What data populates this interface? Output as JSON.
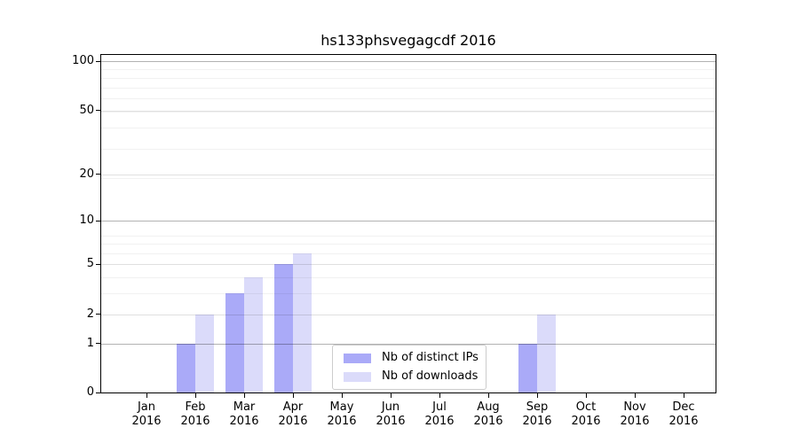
{
  "chart_data": {
    "type": "bar",
    "title": "hs133phsvegagcdf 2016",
    "xlabel": "",
    "ylabel": "",
    "categories": [
      "Jan 2016",
      "Feb 2016",
      "Mar 2016",
      "Apr 2016",
      "May 2016",
      "Jun 2016",
      "Jul 2016",
      "Aug 2016",
      "Sep 2016",
      "Oct 2016",
      "Nov 2016",
      "Dec 2016"
    ],
    "series": [
      {
        "name": "Nb of distinct IPs",
        "color": "#aaaaf8",
        "values": [
          0,
          1,
          3,
          5,
          0,
          0,
          0,
          0,
          1,
          0,
          0,
          0
        ]
      },
      {
        "name": "Nb of downloads",
        "color": "#dbdbfa",
        "values": [
          0,
          2,
          4,
          6,
          0,
          0,
          0,
          0,
          2,
          0,
          0,
          0
        ]
      }
    ],
    "yticks": [
      0,
      1,
      2,
      5,
      10,
      20,
      50,
      100
    ],
    "ytick_labels": [
      "0",
      "1",
      "2",
      "5",
      "10",
      "20",
      "50",
      "100"
    ],
    "scale": "log1p",
    "ylim": [
      0,
      112
    ],
    "grid": "on",
    "legend_position": "inside-bottom-center",
    "colors": {
      "axis": "#000000",
      "grid_decade": "#b3b3b3",
      "grid_major": "#e3e3e3",
      "grid_minor": "#f1f1f1",
      "background": "#ffffff",
      "legend_border": "#cccccc"
    }
  }
}
